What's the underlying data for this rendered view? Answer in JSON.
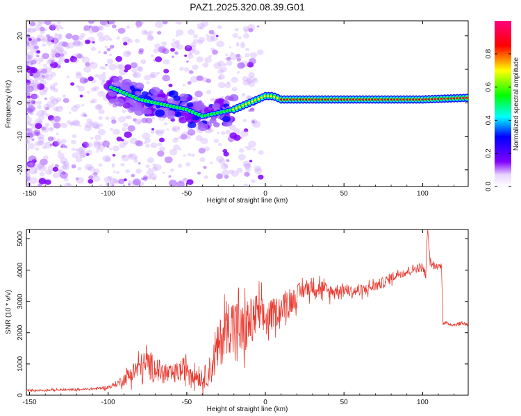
{
  "figure_title": "PAZ1.2025.320.08.39.G01",
  "chart_data": [
    {
      "type": "heatmap",
      "title": "PAZ1.2025.320.08.39.G01",
      "xlabel": "Height of straight line (km)",
      "ylabel": "Frequency (Hz)",
      "xlim": [
        -152,
        129
      ],
      "ylim": [
        -25,
        24.5
      ],
      "xticks": [
        -150,
        -100,
        -50,
        0,
        50,
        100
      ],
      "yticks": [
        -20,
        -10,
        0,
        10,
        20
      ],
      "colorbar": {
        "label": "Normalized spectral amplitude",
        "range": [
          0,
          1
        ],
        "ticks": [
          "0.0",
          "0.2",
          "0.4",
          "0.6",
          "0.8"
        ],
        "tick_values": [
          0.0,
          0.2,
          0.4,
          0.6,
          0.8
        ]
      },
      "ridge": {
        "description_points_x": [
          -100,
          -90,
          -80,
          -70,
          -60,
          -50,
          -40,
          -30,
          -20,
          -10,
          0,
          5,
          10,
          20,
          50,
          80,
          100,
          129
        ],
        "description_points_y": [
          5,
          3,
          1,
          0,
          -1,
          -2,
          -4,
          -3,
          -2,
          0,
          2,
          2,
          1,
          1,
          1,
          1,
          1,
          1.5
        ],
        "peak_amplitude": 1.0
      },
      "colors": {
        "low": "#ffffff",
        "purple": "#8000ff",
        "blue": "#0000ff",
        "cyan": "#00ffff",
        "green": "#00ff00",
        "yellow": "#ffff00",
        "red": "#ff0000",
        "magenta": "#ff0080"
      }
    },
    {
      "type": "line",
      "xlabel": "Height of straight line (km)",
      "ylabel": "SNR (10 * v/v)",
      "xlim": [
        -152,
        129
      ],
      "ylim": [
        0,
        5300
      ],
      "xticks": [
        -150,
        -100,
        -50,
        0,
        50,
        100
      ],
      "yticks": [
        0,
        1000,
        2000,
        3000,
        4000,
        5000
      ],
      "series": [
        {
          "name": "SNR",
          "color": "#e83a30",
          "x": [
            -152,
            -140,
            -130,
            -120,
            -110,
            -100,
            -95,
            -90,
            -85,
            -80,
            -75,
            -70,
            -65,
            -60,
            -55,
            -50,
            -45,
            -40,
            -35,
            -30,
            -25,
            -20,
            -15,
            -10,
            -5,
            0,
            5,
            10,
            15,
            20,
            25,
            30,
            35,
            40,
            45,
            50,
            55,
            60,
            65,
            70,
            75,
            80,
            85,
            90,
            95,
            100,
            102,
            103,
            105,
            110,
            112,
            113,
            115,
            120,
            125,
            129
          ],
          "values": [
            150,
            160,
            170,
            180,
            200,
            250,
            350,
            500,
            700,
            900,
            1000,
            850,
            700,
            650,
            750,
            900,
            700,
            500,
            800,
            1500,
            2200,
            2300,
            2000,
            2300,
            2600,
            2400,
            2600,
            2800,
            2900,
            3200,
            3400,
            3500,
            3450,
            3300,
            3350,
            3400,
            3300,
            3350,
            3400,
            3500,
            3600,
            3750,
            3900,
            3950,
            4050,
            4100,
            3800,
            5300,
            4200,
            4100,
            4150,
            2300,
            2300,
            2250,
            2300,
            2250
          ],
          "noise_amplitude": [
            30,
            30,
            35,
            35,
            40,
            60,
            100,
            200,
            300,
            400,
            500,
            400,
            350,
            300,
            350,
            400,
            350,
            300,
            500,
            800,
            900,
            900,
            900,
            800,
            700,
            600,
            500,
            450,
            400,
            350,
            300,
            300,
            300,
            250,
            200,
            200,
            200,
            180,
            180,
            180,
            180,
            180,
            160,
            160,
            150,
            150,
            150,
            150,
            120,
            100,
            100,
            60,
            60,
            60,
            60,
            60
          ]
        }
      ]
    }
  ]
}
